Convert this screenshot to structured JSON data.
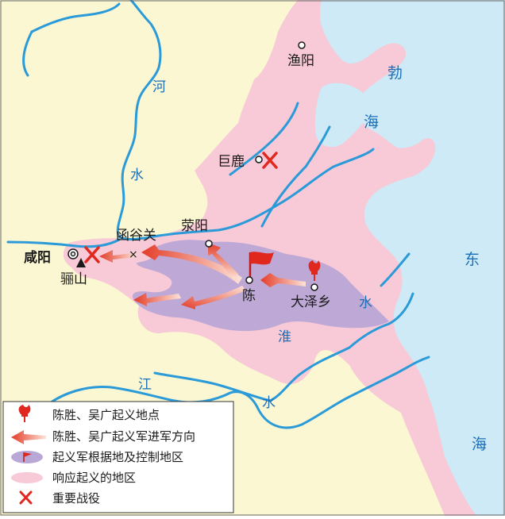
{
  "colors": {
    "land": "#fbf7d2",
    "sea": "#cdeaf6",
    "response": "#f8c9d6",
    "base": "#b9a7d6",
    "river": "#2a9ad8",
    "arrow": "#e8513a",
    "battle": "#e0281e",
    "text_blue": "#1a6fb8"
  },
  "places": {
    "yuyang": "渔阳",
    "julu": "巨鹿",
    "xingyang": "荥阳",
    "hanguguan": "函谷关",
    "xianyang": "咸阳",
    "lishan": "骊山",
    "chen": "陈",
    "dazexiang": "大泽乡"
  },
  "rivers": {
    "he_1": "河",
    "he_2": "水",
    "huai_1": "淮",
    "huai_2": "水",
    "jiang_1": "江",
    "jiang_2": "水"
  },
  "seas": {
    "bo_1": "勃",
    "bo_2": "海",
    "dong_1": "东",
    "dong_2": "海"
  },
  "legend": [
    {
      "icon": "torch-icon",
      "label": "陈胜、吴广起义地点"
    },
    {
      "icon": "march-arrow-icon",
      "label": "陈胜、吴广起义军进军方向"
    },
    {
      "icon": "base-area-icon",
      "label": "起义军根据地及控制地区"
    },
    {
      "icon": "response-area-icon",
      "label": "响应起义的地区"
    },
    {
      "icon": "battle-cross-icon",
      "label": "重要战役"
    }
  ]
}
